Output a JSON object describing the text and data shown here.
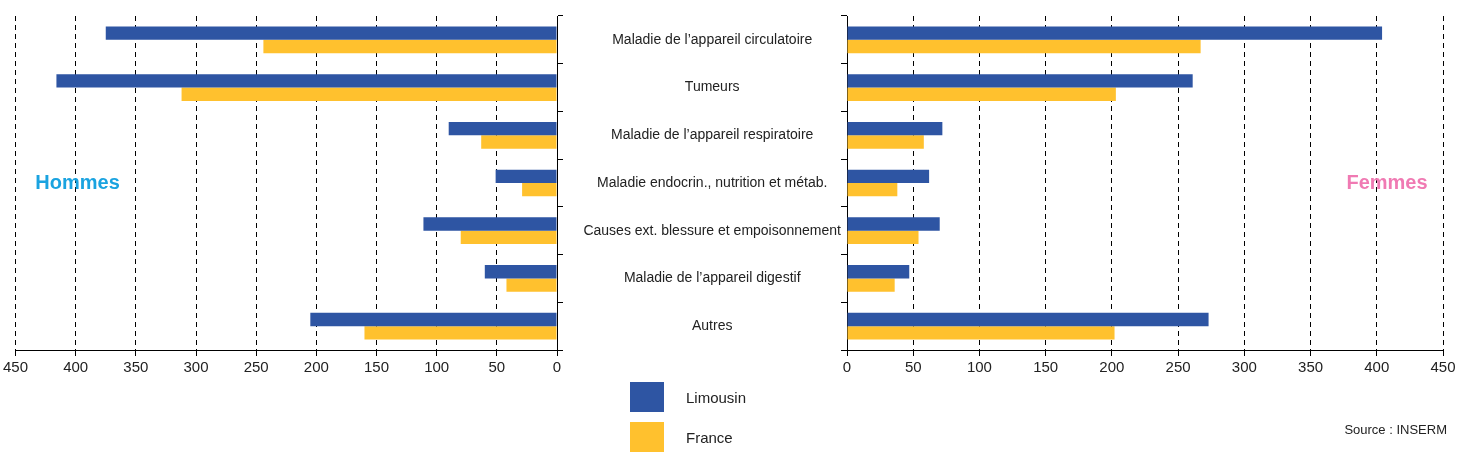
{
  "chart_data": [
    {
      "type": "bar",
      "orientation": "horizontal",
      "title": "Hommes",
      "categories": [
        null,
        null,
        null,
        null,
        null,
        null,
        null
      ],
      "series": [
        {
          "name": "Limousin",
          "color": "#2e55a3",
          "values": [
            375,
            416,
            90,
            51,
            111,
            60,
            205
          ]
        },
        {
          "name": "France",
          "color": "#ffc12e",
          "values": [
            244,
            312,
            63,
            29,
            80,
            42,
            160
          ]
        }
      ],
      "xlim": [
        450,
        0
      ],
      "xticks": [
        450,
        400,
        350,
        300,
        250,
        200,
        150,
        100,
        50,
        0
      ],
      "grid": "x",
      "tick_labels": "x",
      "legend": "bottom right"
    },
    {
      "type": "bar",
      "orientation": "horizontal",
      "title": "Femmes",
      "categories": [
        "Maladie de l’appareil circulatoire",
        "Tumeurs",
        "Maladie de l’appareil respiratoire",
        "Maladie endocrin., nutrition et métab.",
        "Causes ext. blessure et empoisonnement",
        "Maladie de l’appareil digestif",
        "Autres"
      ],
      "series": [
        {
          "color": "#2e55a3",
          "values": [
            404,
            261,
            72,
            62,
            70,
            47,
            273
          ]
        },
        {
          "color": "#ffc12e",
          "values": [
            267,
            203,
            58,
            38,
            54,
            36,
            202
          ]
        }
      ],
      "xlim": [
        0,
        450
      ],
      "xticks": [
        0,
        50,
        100,
        150,
        200,
        250,
        300,
        350,
        400,
        450
      ],
      "grid": "x",
      "annotations": [
        "Source : INSERM"
      ]
    }
  ]
}
